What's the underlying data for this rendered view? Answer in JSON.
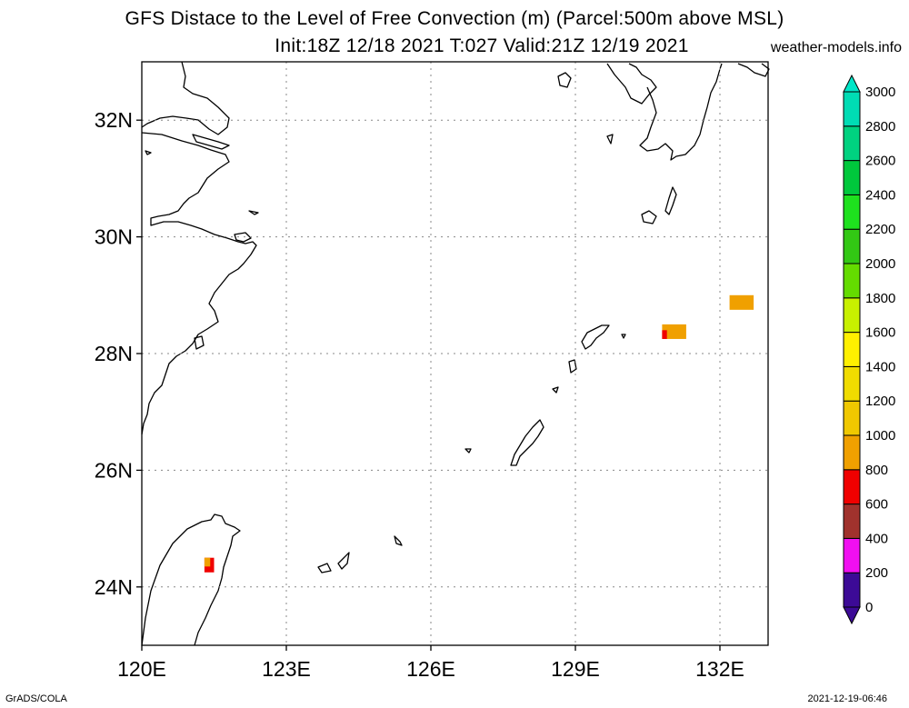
{
  "header": {
    "title_line1": "GFS Distace to the Level of Free Convection (m) (Parcel:500m above MSL)",
    "title_line2": "Init:18Z 12/18 2021 T:027 Valid:21Z 12/19 2021",
    "credit": "weather-models.info"
  },
  "footer": {
    "left": "GrADS/COLA",
    "right": "2021-12-19-06:46"
  },
  "chart_data": {
    "type": "heatmap",
    "title": "GFS Distace to the Level of Free Convection (m) (Parcel:500m above MSL)",
    "xlabel": "",
    "ylabel": "",
    "xlim": [
      120,
      133
    ],
    "ylim": [
      23,
      33
    ],
    "x_ticks": [
      {
        "value": 120,
        "label": "120E"
      },
      {
        "value": 123,
        "label": "123E"
      },
      {
        "value": 126,
        "label": "126E"
      },
      {
        "value": 129,
        "label": "129E"
      },
      {
        "value": 132,
        "label": "132E"
      }
    ],
    "y_ticks": [
      {
        "value": 24,
        "label": "24N"
      },
      {
        "value": 26,
        "label": "26N"
      },
      {
        "value": 28,
        "label": "28N"
      },
      {
        "value": 30,
        "label": "30N"
      },
      {
        "value": 32,
        "label": "32N"
      }
    ],
    "grid": true,
    "colorbar": {
      "levels": [
        0,
        200,
        400,
        600,
        800,
        1000,
        1200,
        1400,
        1600,
        1800,
        2000,
        2200,
        2400,
        2600,
        2800,
        3000
      ],
      "colors": [
        "#3c0a96",
        "#f00ff0",
        "#a0322d",
        "#f00000",
        "#f0a000",
        "#f0c800",
        "#f0dc00",
        "#fff000",
        "#c8f000",
        "#64dc00",
        "#32c814",
        "#1ee11e",
        "#00c83c",
        "#00d280",
        "#00dcb4",
        "#00f0dc"
      ],
      "under_color": "#3c0a96",
      "over_color": "#00e6c8"
    },
    "cells": [
      {
        "lon": 121.3,
        "lat": 24.5,
        "lon2": 121.5,
        "lat2": 24.25,
        "value": 500,
        "color": "#f00000"
      },
      {
        "lon": 121.3,
        "lat": 24.5,
        "lon2": 121.42,
        "lat2": 24.35,
        "value": 700,
        "color": "#f0a000"
      },
      {
        "lon": 130.8,
        "lat": 28.5,
        "lon2": 131.3,
        "lat2": 28.25,
        "value": 900,
        "color": "#f0a000"
      },
      {
        "lon": 130.8,
        "lat": 28.4,
        "lon2": 130.9,
        "lat2": 28.25,
        "value": 500,
        "color": "#f00000"
      },
      {
        "lon": 132.2,
        "lat": 29.0,
        "lon2": 132.7,
        "lat2": 28.75,
        "value": 900,
        "color": "#f0a000"
      }
    ]
  }
}
